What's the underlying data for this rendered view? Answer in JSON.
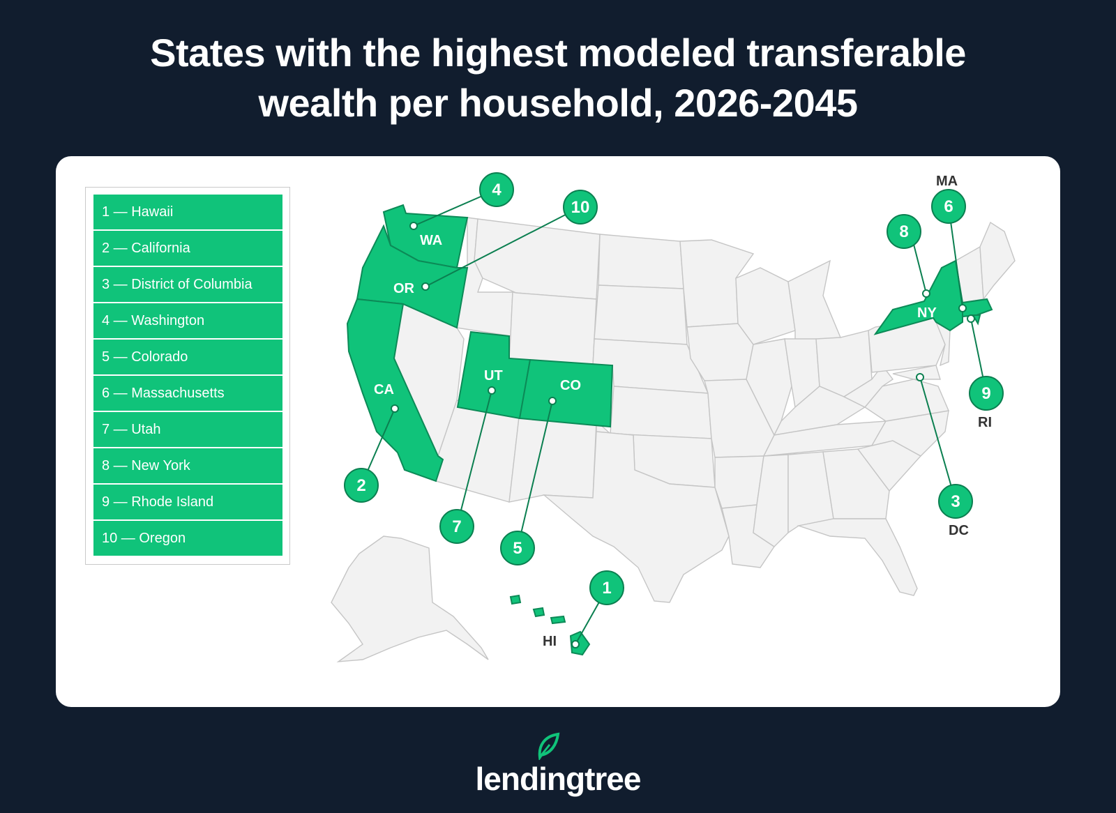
{
  "title": {
    "line1": "States with the highest modeled transferable",
    "line2": "wealth per household, 2026-2045"
  },
  "legend": [
    "1 — Hawaii",
    "2 — California",
    "3 — District of Columbia",
    "4 — Washington",
    "5 — Colorado",
    "6 — Massachusetts",
    "7 — Utah",
    "8 — New York",
    "9 — Rhode Island",
    "10 — Oregon"
  ],
  "map_labels": {
    "wa": "WA",
    "or": "OR",
    "ca": "CA",
    "ut": "UT",
    "co": "CO",
    "ny": "NY",
    "ma": "MA",
    "ri": "RI",
    "dc": "DC",
    "hi": "HI"
  },
  "ranks": {
    "hi": "1",
    "ca": "2",
    "dc": "3",
    "wa": "4",
    "co": "5",
    "ma": "6",
    "ut": "7",
    "ny": "8",
    "ri": "9",
    "or": "10"
  },
  "colors": {
    "highlight": "#10c37a",
    "background": "#111d2e",
    "state": "#f2f2f2"
  },
  "brand": {
    "logo_text": "lendingtree"
  }
}
